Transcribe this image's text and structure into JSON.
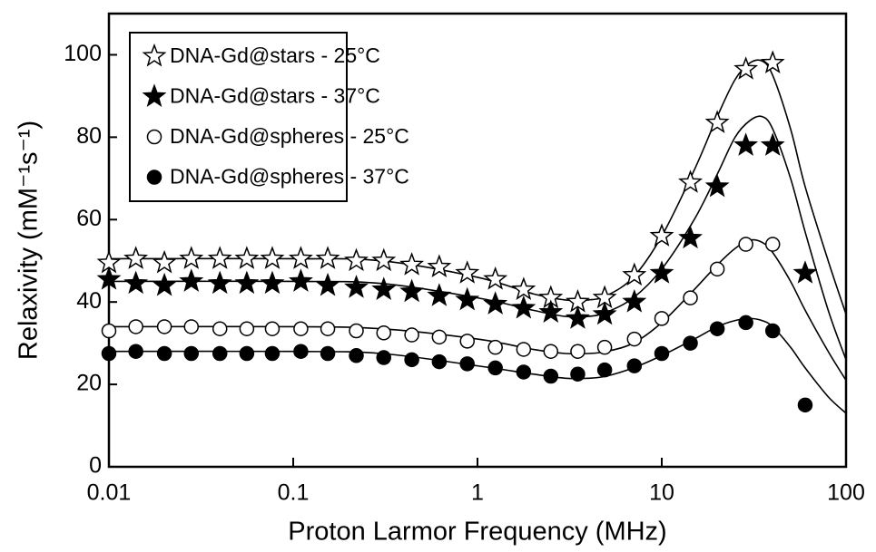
{
  "chart_data": {
    "type": "scatter",
    "xlabel": "Proton Larmor Frequency (MHz)",
    "ylabel": "Relaxivity (mM⁻¹s⁻¹)",
    "xscale": "log",
    "xlim": [
      0.01,
      100
    ],
    "ylim": [
      0,
      110
    ],
    "xticks": [
      0.01,
      0.1,
      1,
      10,
      100
    ],
    "yticks": [
      0,
      20,
      40,
      60,
      80,
      100
    ],
    "legend": "upper left",
    "series": [
      {
        "name": "DNA-Gd@stars - 25°C",
        "marker": "star",
        "filled": false,
        "color": "#000000",
        "x": [
          0.01,
          0.014,
          0.02,
          0.028,
          0.04,
          0.056,
          0.077,
          0.11,
          0.154,
          0.22,
          0.31,
          0.44,
          0.62,
          0.88,
          1.25,
          1.78,
          2.5,
          3.5,
          4.9,
          7.1,
          10,
          14.3,
          20,
          28.6,
          40
        ],
        "values": [
          49.5,
          50.5,
          49.5,
          50.5,
          50.5,
          50.5,
          50.5,
          50.5,
          50.5,
          50,
          50,
          49,
          48.5,
          47,
          45.5,
          43,
          41,
          40,
          41,
          46.5,
          56,
          69,
          83.5,
          96.5,
          98
        ]
      },
      {
        "name": "DNA-Gd@stars - 37°C",
        "marker": "star",
        "filled": true,
        "color": "#000000",
        "x": [
          0.01,
          0.014,
          0.02,
          0.028,
          0.04,
          0.056,
          0.077,
          0.11,
          0.154,
          0.22,
          0.31,
          0.44,
          0.62,
          0.88,
          1.25,
          1.78,
          2.5,
          3.5,
          4.9,
          7.1,
          10,
          14.3,
          20,
          28.6,
          40,
          60
        ],
        "values": [
          45.5,
          44.5,
          44,
          45,
          44.5,
          44.5,
          44.5,
          45,
          44,
          43.5,
          43,
          42.5,
          41.5,
          40.5,
          39.5,
          38.5,
          37.5,
          36,
          37,
          40,
          47,
          55.5,
          68,
          78,
          78,
          47
        ]
      },
      {
        "name": "DNA-Gd@spheres - 25°C",
        "marker": "circle",
        "filled": false,
        "color": "#000000",
        "x": [
          0.01,
          0.014,
          0.02,
          0.028,
          0.04,
          0.056,
          0.077,
          0.11,
          0.154,
          0.22,
          0.31,
          0.44,
          0.62,
          0.88,
          1.25,
          1.78,
          2.5,
          3.5,
          4.9,
          7.1,
          10,
          14.3,
          20,
          28.6,
          40
        ],
        "values": [
          33,
          34,
          34,
          34,
          33.5,
          33.5,
          33.5,
          33.5,
          33.5,
          33,
          32.5,
          32,
          31.5,
          30.5,
          29,
          28.5,
          28,
          28,
          29,
          31,
          36,
          41,
          48,
          54,
          54
        ]
      },
      {
        "name": "DNA-Gd@spheres - 37°C",
        "marker": "circle",
        "filled": true,
        "color": "#000000",
        "x": [
          0.01,
          0.014,
          0.02,
          0.028,
          0.04,
          0.056,
          0.077,
          0.11,
          0.154,
          0.22,
          0.31,
          0.44,
          0.62,
          0.88,
          1.25,
          1.78,
          2.5,
          3.5,
          4.9,
          7.1,
          10,
          14.3,
          20,
          28.6,
          40,
          60
        ],
        "values": [
          27.5,
          28,
          27.5,
          27.5,
          27.5,
          27.5,
          27.5,
          28,
          27.5,
          27,
          26.5,
          26,
          25.5,
          25,
          24,
          23,
          22,
          22.5,
          23.5,
          24.5,
          27.5,
          30,
          33.5,
          35,
          33,
          15
        ]
      }
    ],
    "fit_x": [
      0.01,
      0.1,
      0.3,
      1,
      2,
      3,
      4,
      5,
      7,
      10,
      15,
      20,
      25,
      30,
      35,
      40,
      50,
      60,
      80,
      100
    ],
    "fits": [
      {
        "color": "#000000",
        "values": [
          50.5,
          50.5,
          50,
          46,
          42,
          40.5,
          40.5,
          41.5,
          46,
          56,
          72,
          85,
          94,
          98,
          98.5,
          95,
          82,
          68,
          50,
          37
        ]
      },
      {
        "color": "#000000",
        "values": [
          45,
          45,
          44.5,
          41,
          38,
          36.5,
          36.5,
          37.5,
          41,
          48,
          60,
          71,
          80,
          84,
          85,
          82,
          70,
          57,
          38,
          26
        ]
      },
      {
        "color": "#000000",
        "values": [
          34,
          34,
          33.5,
          31,
          28.5,
          27.5,
          27.5,
          28,
          30,
          35,
          43,
          49,
          53,
          55,
          54.5,
          52,
          45,
          38,
          28,
          21
        ]
      },
      {
        "color": "#000000",
        "values": [
          28,
          28,
          27.5,
          24.5,
          22.5,
          21.5,
          21.5,
          22,
          24,
          27,
          31,
          34,
          35.5,
          36,
          35.5,
          34,
          29,
          24,
          17,
          13
        ]
      }
    ]
  }
}
